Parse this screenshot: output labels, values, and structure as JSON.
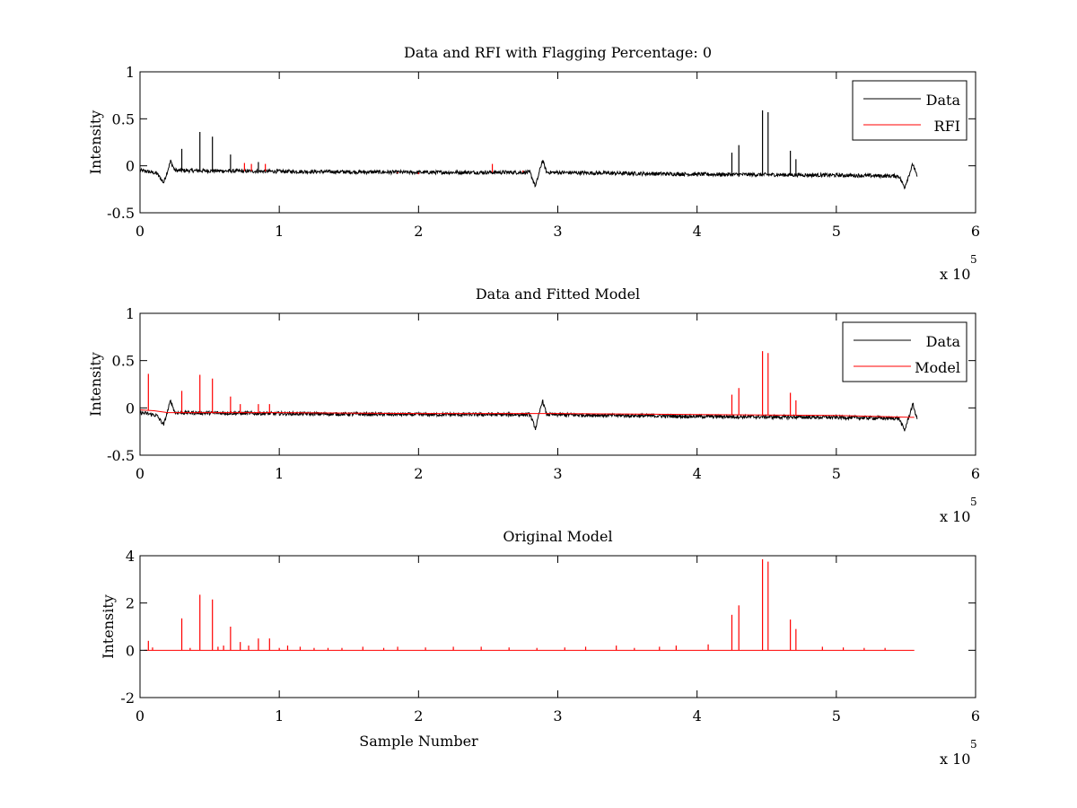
{
  "figure": {
    "background": "#ffffff",
    "data_color": "#000000",
    "rfi_color": "#ff0000"
  },
  "chart_data": [
    {
      "type": "line",
      "title": "Data and RFI with Flagging Percentage: 0",
      "xlabel": "",
      "ylabel": "Intensity",
      "xlim": [
        0,
        600000
      ],
      "ylim": [
        -0.5,
        1
      ],
      "x_ticks": [
        "0",
        "1",
        "2",
        "3",
        "4",
        "5",
        "6"
      ],
      "y_ticks": [
        "-0.5",
        "0",
        "0.5",
        "1"
      ],
      "x_exponent": {
        "base": "x 10",
        "power": "5"
      },
      "grid": false,
      "legend_position": "top-right",
      "series": [
        {
          "name": "Data",
          "color": "#000000",
          "baseline": [
            [
              0,
              -0.05
            ],
            [
              5000,
              -0.06
            ],
            [
              12000,
              -0.08
            ],
            [
              17000,
              -0.18
            ],
            [
              22000,
              0.05
            ],
            [
              25000,
              -0.05
            ],
            [
              100000,
              -0.06
            ],
            [
              200000,
              -0.07
            ],
            [
              280000,
              -0.07
            ],
            [
              284000,
              -0.22
            ],
            [
              289000,
              0.06
            ],
            [
              292000,
              -0.07
            ],
            [
              400000,
              -0.09
            ],
            [
              500000,
              -0.1
            ],
            [
              545000,
              -0.11
            ],
            [
              549000,
              -0.23
            ],
            [
              555000,
              0.02
            ],
            [
              558000,
              -0.12
            ]
          ],
          "spikes": [
            [
              30000,
              0.18
            ],
            [
              43000,
              0.36
            ],
            [
              52000,
              0.31
            ],
            [
              65000,
              0.12
            ],
            [
              85000,
              0.04
            ],
            [
              425000,
              0.14
            ],
            [
              430000,
              0.22
            ],
            [
              447000,
              0.59
            ],
            [
              451000,
              0.57
            ],
            [
              467000,
              0.16
            ],
            [
              471000,
              0.07
            ]
          ],
          "noise": 0.02
        },
        {
          "name": "RFI",
          "color": "#ff0000",
          "baseline": [],
          "spikes": [
            [
              75000,
              0.03
            ],
            [
              80000,
              0.02
            ],
            [
              90000,
              0.02
            ],
            [
              185000,
              -0.08
            ],
            [
              200000,
              -0.09
            ],
            [
              253000,
              0.02
            ],
            [
              275000,
              -0.05
            ]
          ],
          "noise": 0
        }
      ]
    },
    {
      "type": "line",
      "title": "Data and Fitted Model",
      "xlabel": "",
      "ylabel": "Intensity",
      "xlim": [
        0,
        600000
      ],
      "ylim": [
        -0.5,
        1
      ],
      "x_ticks": [
        "0",
        "1",
        "2",
        "3",
        "4",
        "5",
        "6"
      ],
      "y_ticks": [
        "-0.5",
        "0",
        "0.5",
        "1"
      ],
      "x_exponent": {
        "base": "x 10",
        "power": "5"
      },
      "grid": false,
      "legend_position": "top-right",
      "series": [
        {
          "name": "Data",
          "color": "#000000",
          "baseline": [
            [
              0,
              -0.05
            ],
            [
              5000,
              -0.06
            ],
            [
              12000,
              -0.08
            ],
            [
              17000,
              -0.18
            ],
            [
              22000,
              0.08
            ],
            [
              25000,
              -0.05
            ],
            [
              100000,
              -0.06
            ],
            [
              200000,
              -0.07
            ],
            [
              280000,
              -0.07
            ],
            [
              284000,
              -0.22
            ],
            [
              289000,
              0.08
            ],
            [
              292000,
              -0.07
            ],
            [
              400000,
              -0.09
            ],
            [
              500000,
              -0.1
            ],
            [
              545000,
              -0.11
            ],
            [
              549000,
              -0.24
            ],
            [
              555000,
              0.04
            ],
            [
              558000,
              -0.12
            ]
          ],
          "spikes": [],
          "noise": 0.02
        },
        {
          "name": "Model",
          "color": "#ff0000",
          "baseline": [
            [
              0,
              -0.02
            ],
            [
              10000,
              -0.03
            ],
            [
              20000,
              -0.05
            ],
            [
              100000,
              -0.05
            ],
            [
              200000,
              -0.06
            ],
            [
              300000,
              -0.06
            ],
            [
              400000,
              -0.07
            ],
            [
              500000,
              -0.08
            ],
            [
              556000,
              -0.1
            ]
          ],
          "spikes": [
            [
              6000,
              0.36
            ],
            [
              30000,
              0.18
            ],
            [
              43000,
              0.35
            ],
            [
              52000,
              0.31
            ],
            [
              65000,
              0.12
            ],
            [
              72000,
              0.04
            ],
            [
              85000,
              0.04
            ],
            [
              93000,
              0.04
            ],
            [
              425000,
              0.14
            ],
            [
              430000,
              0.21
            ],
            [
              447000,
              0.6
            ],
            [
              451000,
              0.58
            ],
            [
              467000,
              0.16
            ],
            [
              471000,
              0.08
            ]
          ],
          "noise": 0
        }
      ]
    },
    {
      "type": "line",
      "title": "Original Model",
      "xlabel": "Sample Number",
      "ylabel": "Intensity",
      "xlim": [
        0,
        600000
      ],
      "ylim": [
        -2,
        4
      ],
      "x_ticks": [
        "0",
        "1",
        "2",
        "3",
        "4",
        "5",
        "6"
      ],
      "y_ticks": [
        "-2",
        "0",
        "2",
        "4"
      ],
      "x_exponent": {
        "base": "x 10",
        "power": "5"
      },
      "grid": false,
      "legend_position": "none",
      "series": [
        {
          "name": "",
          "color": "#ff0000",
          "baseline": [
            [
              3000,
              0
            ],
            [
              556000,
              0
            ]
          ],
          "spikes": [
            [
              6000,
              0.4
            ],
            [
              9000,
              0.12
            ],
            [
              30000,
              1.35
            ],
            [
              36000,
              0.1
            ],
            [
              43000,
              2.35
            ],
            [
              52000,
              2.15
            ],
            [
              56000,
              0.15
            ],
            [
              60000,
              0.2
            ],
            [
              65000,
              1.0
            ],
            [
              72000,
              0.35
            ],
            [
              78000,
              0.2
            ],
            [
              85000,
              0.5
            ],
            [
              93000,
              0.5
            ],
            [
              100000,
              0.1
            ],
            [
              106000,
              0.2
            ],
            [
              115000,
              0.15
            ],
            [
              125000,
              0.1
            ],
            [
              135000,
              0.1
            ],
            [
              145000,
              0.1
            ],
            [
              160000,
              0.15
            ],
            [
              175000,
              0.1
            ],
            [
              185000,
              0.15
            ],
            [
              205000,
              0.12
            ],
            [
              225000,
              0.15
            ],
            [
              245000,
              0.15
            ],
            [
              265000,
              0.12
            ],
            [
              285000,
              0.1
            ],
            [
              305000,
              0.12
            ],
            [
              320000,
              0.15
            ],
            [
              342000,
              0.2
            ],
            [
              355000,
              0.1
            ],
            [
              373000,
              0.15
            ],
            [
              385000,
              0.2
            ],
            [
              408000,
              0.25
            ],
            [
              425000,
              1.5
            ],
            [
              430000,
              1.9
            ],
            [
              447000,
              3.85
            ],
            [
              451000,
              3.75
            ],
            [
              467000,
              1.3
            ],
            [
              471000,
              0.9
            ],
            [
              490000,
              0.15
            ],
            [
              505000,
              0.12
            ],
            [
              520000,
              0.1
            ],
            [
              535000,
              0.1
            ]
          ],
          "noise": 0
        }
      ]
    }
  ]
}
